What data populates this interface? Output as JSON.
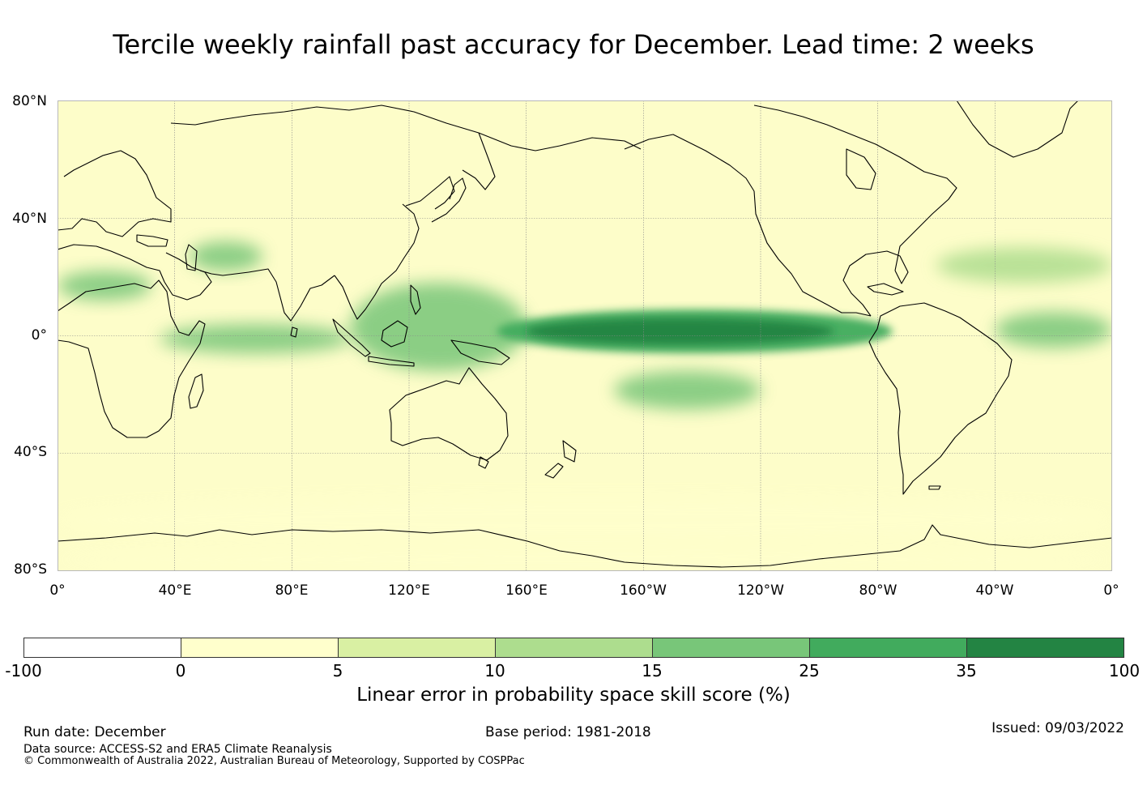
{
  "title": "Tercile weekly rainfall past accuracy for December. Lead time: 2 weeks",
  "map": {
    "lat_labels": [
      "80°N",
      "40°N",
      "0°",
      "40°S",
      "80°S"
    ],
    "lon_labels": [
      "0°",
      "40°E",
      "80°E",
      "120°E",
      "160°E",
      "160°W",
      "120°W",
      "80°W",
      "40°W",
      "0°"
    ],
    "lat_range": [
      -80,
      80
    ],
    "lon_range": [
      0,
      360
    ],
    "background_color": "#fdfdc9",
    "features": [
      {
        "name": "ITCZ central Pacific core",
        "level": 35,
        "lon": [
          160,
          265
        ],
        "lat": [
          -3,
          6
        ]
      },
      {
        "name": "Equatorial Pacific band",
        "level": 25,
        "lon": [
          150,
          285
        ],
        "lat": [
          -6,
          9
        ]
      },
      {
        "name": "Maritime Continent",
        "level": 15,
        "lon": [
          100,
          160
        ],
        "lat": [
          -12,
          18
        ]
      },
      {
        "name": "Equatorial Atlantic",
        "level": 15,
        "lon": [
          320,
          360
        ],
        "lat": [
          -4,
          8
        ]
      },
      {
        "name": "West Africa Sahel",
        "level": 15,
        "lon": [
          0,
          32
        ],
        "lat": [
          12,
          22
        ]
      },
      {
        "name": "Equatorial Indian Ocean",
        "level": 15,
        "lon": [
          35,
          100
        ],
        "lat": [
          -6,
          4
        ]
      },
      {
        "name": "South Pacific Convergence Zone",
        "level": 15,
        "lon": [
          190,
          240
        ],
        "lat": [
          -25,
          -12
        ]
      },
      {
        "name": "Arabia / Persian Gulf",
        "level": 15,
        "lon": [
          45,
          70
        ],
        "lat": [
          22,
          32
        ]
      },
      {
        "name": "Atlantic subtropical band",
        "level": 10,
        "lon": [
          300,
          360
        ],
        "lat": [
          18,
          30
        ]
      },
      {
        "name": "Southern Ocean low-skill patches",
        "level": 0,
        "lon": [
          0,
          360
        ],
        "lat": [
          -70,
          -55
        ]
      },
      {
        "name": "Antarctic coast",
        "level": 0,
        "lon": [
          0,
          360
        ],
        "lat": [
          -80,
          -72
        ]
      }
    ]
  },
  "colorbar": {
    "ticks": [
      "-100",
      "0",
      "5",
      "10",
      "15",
      "25",
      "35",
      "100"
    ],
    "colors": [
      "#ffffff",
      "#ffffcc",
      "#d9f0a3",
      "#addd8e",
      "#78c679",
      "#41ab5d",
      "#238443"
    ],
    "label": "Linear error in probability space skill score (%)"
  },
  "footer": {
    "run_date": "Run date: December",
    "base_period": "Base period: 1981-2018",
    "issued": "Issued: 09/03/2022",
    "data_source": "Data source: ACCESS-S2 and ERA5 Climate Reanalysis",
    "copyright": "© Commonwealth of Australia 2022, Australian Bureau of Meteorology, Supported by COSPPac"
  }
}
